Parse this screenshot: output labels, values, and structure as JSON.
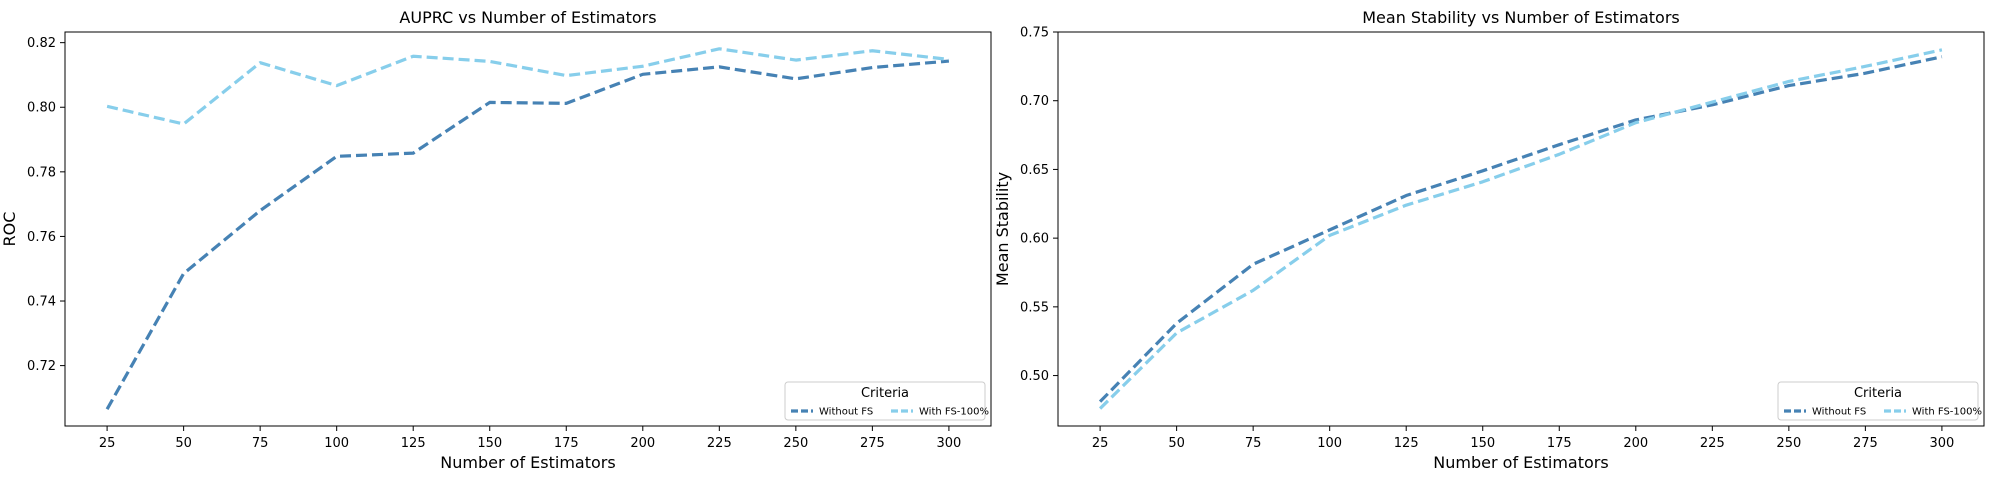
{
  "colors": {
    "without_fs": "#4682b4",
    "with_fs": "#87ceeb",
    "axes": "#000000",
    "legend_border": "#cccccc"
  },
  "chart_data": [
    {
      "type": "line",
      "title": "AUPRC vs Number of Estimators",
      "xlabel": "Number of Estimators",
      "ylabel": "ROC",
      "x": [
        25,
        50,
        75,
        100,
        125,
        150,
        175,
        200,
        225,
        250,
        275,
        300
      ],
      "xticks": [
        25,
        50,
        75,
        100,
        125,
        150,
        175,
        200,
        225,
        250,
        275,
        300
      ],
      "yticks": [
        0.72,
        0.74,
        0.76,
        0.78,
        0.8,
        0.82
      ],
      "ytick_labels": [
        "0.72",
        "0.74",
        "0.76",
        "0.78",
        "0.80",
        "0.82"
      ],
      "xlim": [
        11.25,
        313.75
      ],
      "ylim": [
        0.7013,
        0.8233
      ],
      "grid": false,
      "legend_title": "Criteria",
      "legend_position": "lower-right",
      "series": [
        {
          "name": "Without FS",
          "color_key": "without_fs",
          "style": "dashed",
          "values": [
            0.7065,
            0.7485,
            0.768,
            0.7848,
            0.7858,
            0.8015,
            0.8012,
            0.8102,
            0.8125,
            0.8088,
            0.8123,
            0.8143
          ]
        },
        {
          "name": "With FS-100%",
          "color_key": "with_fs",
          "style": "dashed",
          "values": [
            0.8003,
            0.7948,
            0.8138,
            0.8067,
            0.8158,
            0.8142,
            0.8098,
            0.8127,
            0.8181,
            0.8146,
            0.8175,
            0.8148
          ]
        }
      ]
    },
    {
      "type": "line",
      "title": "Mean Stability vs Number of Estimators",
      "xlabel": "Number of Estimators",
      "ylabel": "Mean Stability",
      "x": [
        25,
        50,
        75,
        100,
        125,
        150,
        175,
        200,
        225,
        250,
        275,
        300
      ],
      "xticks": [
        25,
        50,
        75,
        100,
        125,
        150,
        175,
        200,
        225,
        250,
        275,
        300
      ],
      "yticks": [
        0.5,
        0.55,
        0.6,
        0.65,
        0.7,
        0.75
      ],
      "ytick_labels": [
        "0.50",
        "0.55",
        "0.60",
        "0.65",
        "0.70",
        "0.75"
      ],
      "xlim": [
        11.25,
        313.75
      ],
      "ylim": [
        0.4633,
        0.75
      ],
      "grid": false,
      "legend_title": "Criteria",
      "legend_position": "lower-right",
      "series": [
        {
          "name": "Without FS",
          "color_key": "without_fs",
          "style": "dashed",
          "values": [
            0.481,
            0.538,
            0.581,
            0.606,
            0.631,
            0.649,
            0.668,
            0.686,
            0.697,
            0.711,
            0.72,
            0.732
          ]
        },
        {
          "name": "With FS-100%",
          "color_key": "with_fs",
          "style": "dashed",
          "values": [
            0.476,
            0.531,
            0.562,
            0.602,
            0.624,
            0.641,
            0.661,
            0.684,
            0.699,
            0.714,
            0.725,
            0.737
          ]
        }
      ]
    }
  ]
}
